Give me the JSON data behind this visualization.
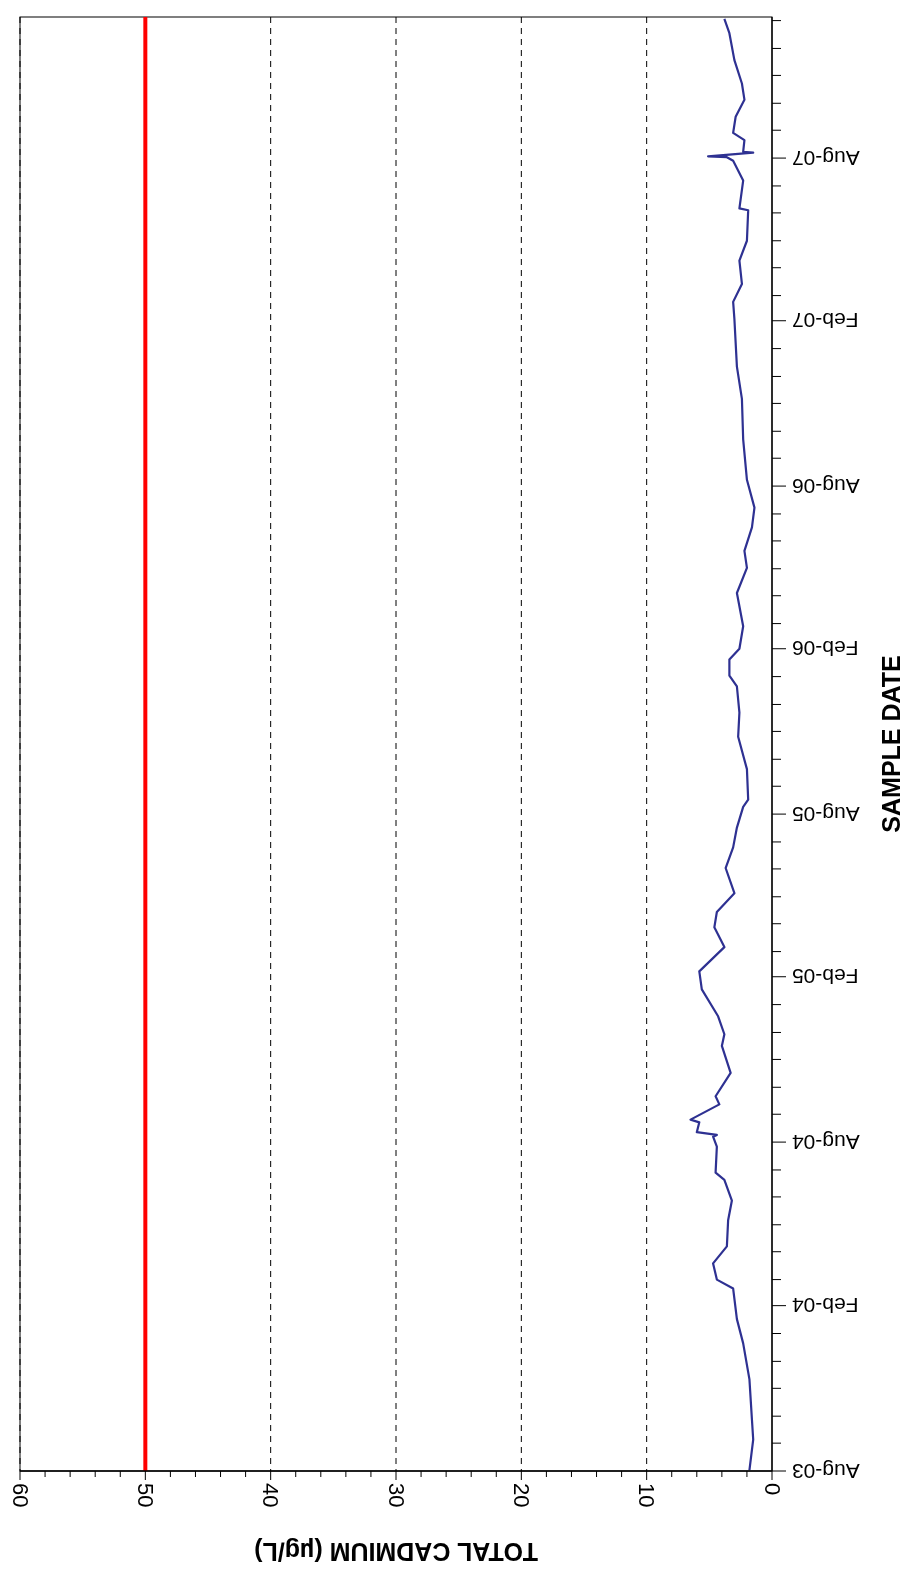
{
  "chart_data": {
    "type": "line",
    "orientation": "horizontal",
    "xlabel": "TOTAL CADMIUM (µg/L)",
    "ylabel": "SAMPLE DATE",
    "x": [
      "2003-08-02",
      "2003-09-05",
      "2003-09-27",
      "2003-11-11",
      "2003-12-21",
      "2004-01-17",
      "2004-02-20",
      "2004-03-01",
      "2004-03-19",
      "2004-04-07",
      "2004-05-06",
      "2004-05-28",
      "2004-06-20",
      "2004-06-28",
      "2004-07-27",
      "2004-08-07",
      "2004-08-09",
      "2004-08-12",
      "2004-08-23",
      "2004-08-26",
      "2004-09-12",
      "2004-09-21",
      "2004-10-17",
      "2004-11-16",
      "2004-11-29",
      "2004-12-19",
      "2005-01-18",
      "2005-02-07",
      "2005-03-06",
      "2005-03-28",
      "2005-04-14",
      "2005-05-05",
      "2005-06-02",
      "2005-06-25",
      "2005-07-17",
      "2005-08-09",
      "2005-08-17",
      "2005-09-20",
      "2005-10-26",
      "2005-11-22",
      "2005-12-21",
      "2006-01-02",
      "2006-01-20",
      "2006-02-01",
      "2006-02-26",
      "2006-04-04",
      "2006-05-02",
      "2006-05-21",
      "2006-06-16",
      "2006-07-08",
      "2006-08-08",
      "2006-09-22",
      "2006-11-06",
      "2006-12-12",
      "2007-02-03",
      "2007-02-22",
      "2007-03-14",
      "2007-04-09",
      "2007-05-01",
      "2007-06-04",
      "2007-06-06",
      "2007-07-07",
      "2007-07-29",
      "2007-08-02",
      "2007-08-03",
      "2007-08-07",
      "2007-08-08",
      "2007-08-21",
      "2007-08-29",
      "2007-09-16",
      "2007-10-05",
      "2007-10-23",
      "2007-11-18",
      "2007-12-18",
      "2008-01-03"
    ],
    "series": [
      {
        "color": "#2e3192",
        "values": [
          1.8,
          1.5,
          1.6,
          1.8,
          2.3,
          2.8,
          3.1,
          4.4,
          4.7,
          3.6,
          3.5,
          3.2,
          3.8,
          4.5,
          4.4,
          4.7,
          4.4,
          6.0,
          5.8,
          6.5,
          4.2,
          4.5,
          3.3,
          4.0,
          3.8,
          4.3,
          5.6,
          5.8,
          3.8,
          4.6,
          4.4,
          3.0,
          3.7,
          3.1,
          2.8,
          2.3,
          1.9,
          2.0,
          2.7,
          2.6,
          2.8,
          3.4,
          3.4,
          2.6,
          2.3,
          2.8,
          2.0,
          2.2,
          1.6,
          1.4,
          2.0,
          2.3,
          2.4,
          2.8,
          3.0,
          3.1,
          2.4,
          2.6,
          2.0,
          1.9,
          2.6,
          2.3,
          3.1,
          3.6,
          5.1,
          1.5,
          2.3,
          2.2,
          3.1,
          2.9,
          2.2,
          2.4,
          3.0,
          3.4,
          3.8
        ]
      }
    ],
    "ylim": [
      "2003-08-01",
      "2008-01-05"
    ],
    "yticks": [
      {
        "value": "2003-08",
        "label": "Aug-03"
      },
      {
        "value": "2003-09",
        "label": null
      },
      {
        "value": "2003-10",
        "label": null
      },
      {
        "value": "2003-11",
        "label": null
      },
      {
        "value": "2003-12",
        "label": null
      },
      {
        "value": "2004-01",
        "label": null
      },
      {
        "value": "2004-02",
        "label": "Feb-04"
      },
      {
        "value": "2004-03",
        "label": null
      },
      {
        "value": "2004-04",
        "label": null
      },
      {
        "value": "2004-05",
        "label": null
      },
      {
        "value": "2004-06",
        "label": null
      },
      {
        "value": "2004-07",
        "label": null
      },
      {
        "value": "2004-08",
        "label": "Aug-04"
      },
      {
        "value": "2004-09",
        "label": null
      },
      {
        "value": "2004-10",
        "label": null
      },
      {
        "value": "2004-11",
        "label": null
      },
      {
        "value": "2004-12",
        "label": null
      },
      {
        "value": "2005-01",
        "label": null
      },
      {
        "value": "2005-02",
        "label": "Feb-05"
      },
      {
        "value": "2005-03",
        "label": null
      },
      {
        "value": "2005-04",
        "label": null
      },
      {
        "value": "2005-05",
        "label": null
      },
      {
        "value": "2005-06",
        "label": null
      },
      {
        "value": "2005-07",
        "label": null
      },
      {
        "value": "2005-08",
        "label": "Aug-05"
      },
      {
        "value": "2005-09",
        "label": null
      },
      {
        "value": "2005-10",
        "label": null
      },
      {
        "value": "2005-11",
        "label": null
      },
      {
        "value": "2005-12",
        "label": null
      },
      {
        "value": "2006-01",
        "label": null
      },
      {
        "value": "2006-02",
        "label": "Feb-06"
      },
      {
        "value": "2006-03",
        "label": null
      },
      {
        "value": "2006-04",
        "label": null
      },
      {
        "value": "2006-05",
        "label": null
      },
      {
        "value": "2006-06",
        "label": null
      },
      {
        "value": "2006-07",
        "label": null
      },
      {
        "value": "2006-08",
        "label": "Aug-06"
      },
      {
        "value": "2006-09",
        "label": null
      },
      {
        "value": "2006-10",
        "label": null
      },
      {
        "value": "2006-11",
        "label": null
      },
      {
        "value": "2006-12",
        "label": null
      },
      {
        "value": "2007-01",
        "label": null
      },
      {
        "value": "2007-02",
        "label": "Feb-07"
      },
      {
        "value": "2007-03",
        "label": null
      },
      {
        "value": "2007-04",
        "label": null
      },
      {
        "value": "2007-05",
        "label": null
      },
      {
        "value": "2007-06",
        "label": null
      },
      {
        "value": "2007-07",
        "label": null
      },
      {
        "value": "2007-08",
        "label": "Aug-07"
      },
      {
        "value": "2007-09",
        "label": null
      },
      {
        "value": "2007-10",
        "label": null
      },
      {
        "value": "2007-11",
        "label": null
      },
      {
        "value": "2007-12",
        "label": null
      },
      {
        "value": "2008-01",
        "label": null
      }
    ],
    "xlim": [
      60,
      0
    ],
    "xticks": [
      0,
      {
        "value": 2,
        "label": null
      },
      {
        "value": 4,
        "label": null
      },
      {
        "value": 6,
        "label": null
      },
      {
        "value": 8,
        "label": null
      },
      10,
      {
        "value": 12,
        "label": null
      },
      {
        "value": 14,
        "label": null
      },
      {
        "value": 16,
        "label": null
      },
      {
        "value": 18,
        "label": null
      },
      20,
      {
        "value": 22,
        "label": null
      },
      {
        "value": 24,
        "label": null
      },
      {
        "value": 26,
        "label": null
      },
      {
        "value": 28,
        "label": null
      },
      30,
      {
        "value": 32,
        "label": null
      },
      {
        "value": 34,
        "label": null
      },
      {
        "value": 36,
        "label": null
      },
      {
        "value": 38,
        "label": null
      },
      40,
      {
        "value": 42,
        "label": null
      },
      {
        "value": 44,
        "label": null
      },
      {
        "value": 46,
        "label": null
      },
      {
        "value": 48,
        "label": null
      },
      50,
      {
        "value": 52,
        "label": null
      },
      {
        "value": 54,
        "label": null
      },
      {
        "value": 56,
        "label": null
      },
      {
        "value": 58,
        "label": null
      },
      60
    ],
    "grid": "x",
    "ref_lines": [
      {
        "axis": "x",
        "value": 50,
        "color": "#ff0000"
      }
    ]
  }
}
